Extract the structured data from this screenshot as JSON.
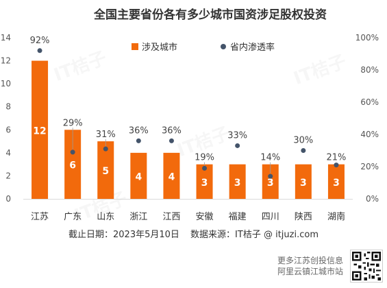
{
  "chart_data": {
    "type": "bar",
    "title": "全国主要省份各有多少城市国资涉足股权投资",
    "categories": [
      "江苏",
      "广东",
      "山东",
      "浙江",
      "江西",
      "安徽",
      "福建",
      "四川",
      "陕西",
      "湖南"
    ],
    "series": [
      {
        "name": "涉及城市",
        "type": "bar",
        "axis": "left",
        "color": "#f26a0c",
        "values": [
          12,
          6,
          5,
          4,
          4,
          3,
          3,
          3,
          3,
          3
        ],
        "labels": [
          "12",
          "6",
          "5",
          "4",
          "4",
          "3",
          "3",
          "3",
          "3",
          "3"
        ]
      },
      {
        "name": "省内渗透率",
        "type": "scatter",
        "axis": "right",
        "color": "#44546a",
        "values": [
          92,
          29,
          31,
          36,
          36,
          19,
          33,
          14,
          30,
          21
        ],
        "labels": [
          "92%",
          "29%",
          "31%",
          "36%",
          "36%",
          "19%",
          "33%",
          "14%",
          "30%",
          "21%"
        ]
      }
    ],
    "y_left": {
      "ylim": [
        0,
        14
      ],
      "ticks": [
        "0",
        "2",
        "4",
        "6",
        "8",
        "10",
        "12",
        "14"
      ]
    },
    "y_right": {
      "ylim": [
        0,
        100
      ],
      "ticks": [
        "0%",
        "20%",
        "40%",
        "60%",
        "80%",
        "100%"
      ]
    },
    "grid": false,
    "legend_position": "top"
  },
  "footer": {
    "date": "截止日期：2023年5月10日",
    "source": "数据来源：IT桔子 @ itjuzi.com"
  },
  "promo": {
    "line1": "更多江苏创投信息",
    "line2": "阿里云镇江城市站"
  },
  "watermark": "IT桔子"
}
